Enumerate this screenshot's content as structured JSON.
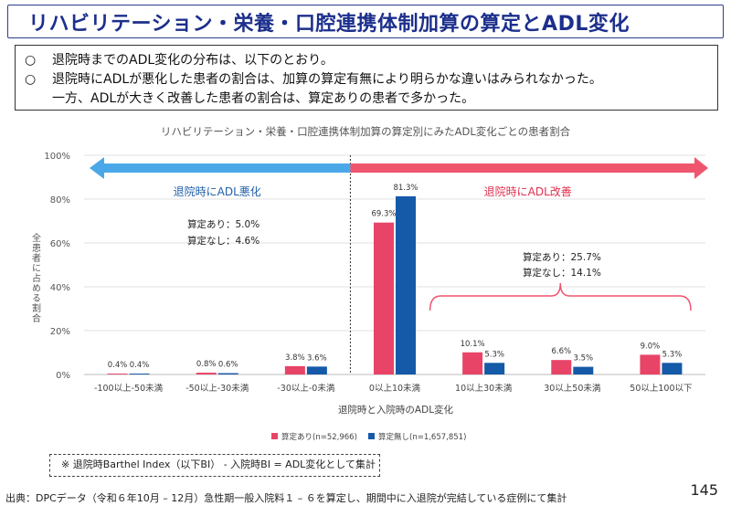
{
  "title": "リハビリテーション・栄養・口腔連携体制加算の算定とADL変化",
  "summary": {
    "bullet_mark": "○",
    "line1": "退院時までのADL変化の分布は、以下のとおり。",
    "line2": "退院時にADLが悪化した患者の割合は、加算の算定有無により明らかな違いはみられなかった。",
    "line3": "一方、ADLが大きく改善した患者の割合は、算定ありの患者で多かった。"
  },
  "colors": {
    "series1": "#e84467",
    "series2": "#155aa8",
    "worse": "#4aa8e8",
    "better": "#f0556e",
    "title": "#1c2f8c"
  },
  "chart_data": {
    "type": "bar",
    "title": "リハビリテーション・栄養・口腔連携体制加算の算定別にみたADL変化ごとの患者割合",
    "xlabel": "退院時と入院時のADL変化",
    "ylabel": "全患者に占める割合",
    "ylim": [
      0,
      100
    ],
    "yticks": [
      "0%",
      "20%",
      "40%",
      "60%",
      "80%",
      "100%"
    ],
    "categories": [
      "-100以上-50未満",
      "-50以上-30未満",
      "-30以上-0未満",
      "0以上10未満",
      "10以上30未満",
      "30以上50未満",
      "50以上100以下"
    ],
    "series": [
      {
        "name": "算定あり(n=52,966)",
        "values": [
          0.4,
          0.8,
          3.8,
          69.3,
          10.1,
          6.6,
          9.0
        ],
        "labels": [
          "0.4%",
          "0.8%",
          "3.8%",
          "69.3%",
          "10.1%",
          "6.6%",
          "9.0%"
        ]
      },
      {
        "name": "算定無し(n=1,657,851)",
        "values": [
          0.4,
          0.6,
          3.6,
          81.3,
          5.3,
          3.5,
          5.3
        ],
        "labels": [
          "0.4%",
          "0.6%",
          "3.6%",
          "81.3%",
          "5.3%",
          "3.5%",
          "5.3%"
        ]
      }
    ],
    "annotations": {
      "worse_label": "退院時にADL悪化",
      "better_label": "退院時にADL改善",
      "worse_with": "算定あり：5.0%",
      "worse_without": "算定なし：4.6%",
      "better_with": "算定あり：25.7%",
      "better_without": "算定なし：14.1%"
    },
    "grid": true,
    "legend": "bottom"
  },
  "note": "※ 退院時Barthel Index（以下BI） - 入院時BI = ADL変化として集計",
  "source": "出典：DPCデータ（令和６年10月 – 12月）急性期一般入院料１ – ６を算定し、期間中に入退院が完結している症例にて集計",
  "page_number": "145"
}
